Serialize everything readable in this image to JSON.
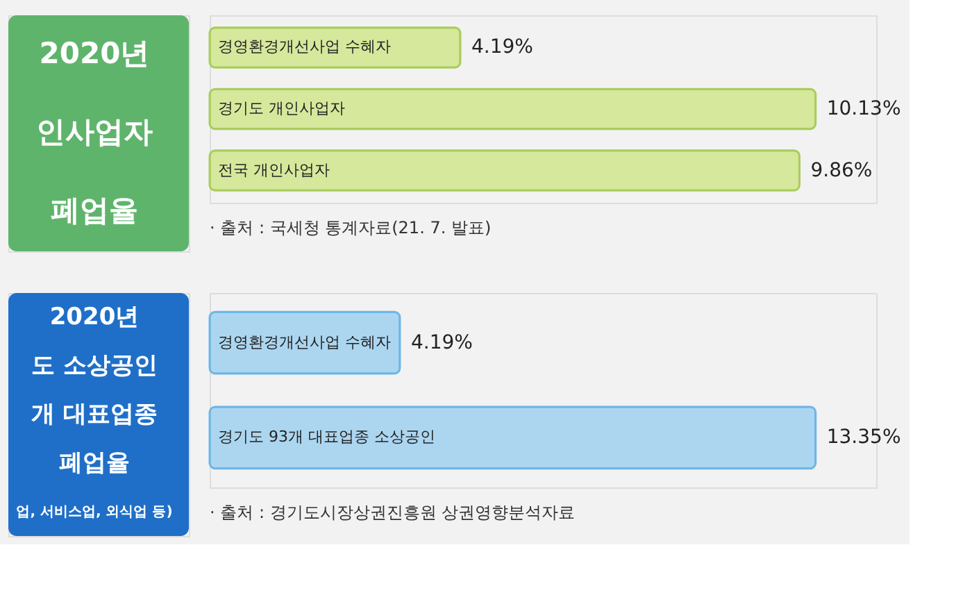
{
  "chart_data": [
    {
      "type": "bar",
      "orientation": "horizontal",
      "title": "2020년\n인사업자\n폐업율",
      "categories": [
        "경영환경개선사업 수혜자",
        "경기도 개인사업자",
        "전국 개인사업자"
      ],
      "values": [
        4.19,
        10.13,
        9.86
      ],
      "value_labels": [
        "4.19%",
        "10.13%",
        "9.86%"
      ],
      "color": "#d6e89c",
      "annotations": [
        "· 출처 : 국세청 통계자료(21. 7. 발표)"
      ]
    },
    {
      "type": "bar",
      "orientation": "horizontal",
      "title": "2020년\n도 소상공인\n개 대표업종\n폐업율\n업, 서비스업, 외식업 등)",
      "categories": [
        "경영환경개선사업 수혜자",
        "경기도 93개 대표업종 소상공인"
      ],
      "values": [
        4.19,
        13.35
      ],
      "value_labels": [
        "4.19%",
        "13.35%"
      ],
      "color": "#acd6f0",
      "annotations": [
        "· 출처 : 경기도시장상권진흥원 상권영향분석자료"
      ]
    }
  ]
}
